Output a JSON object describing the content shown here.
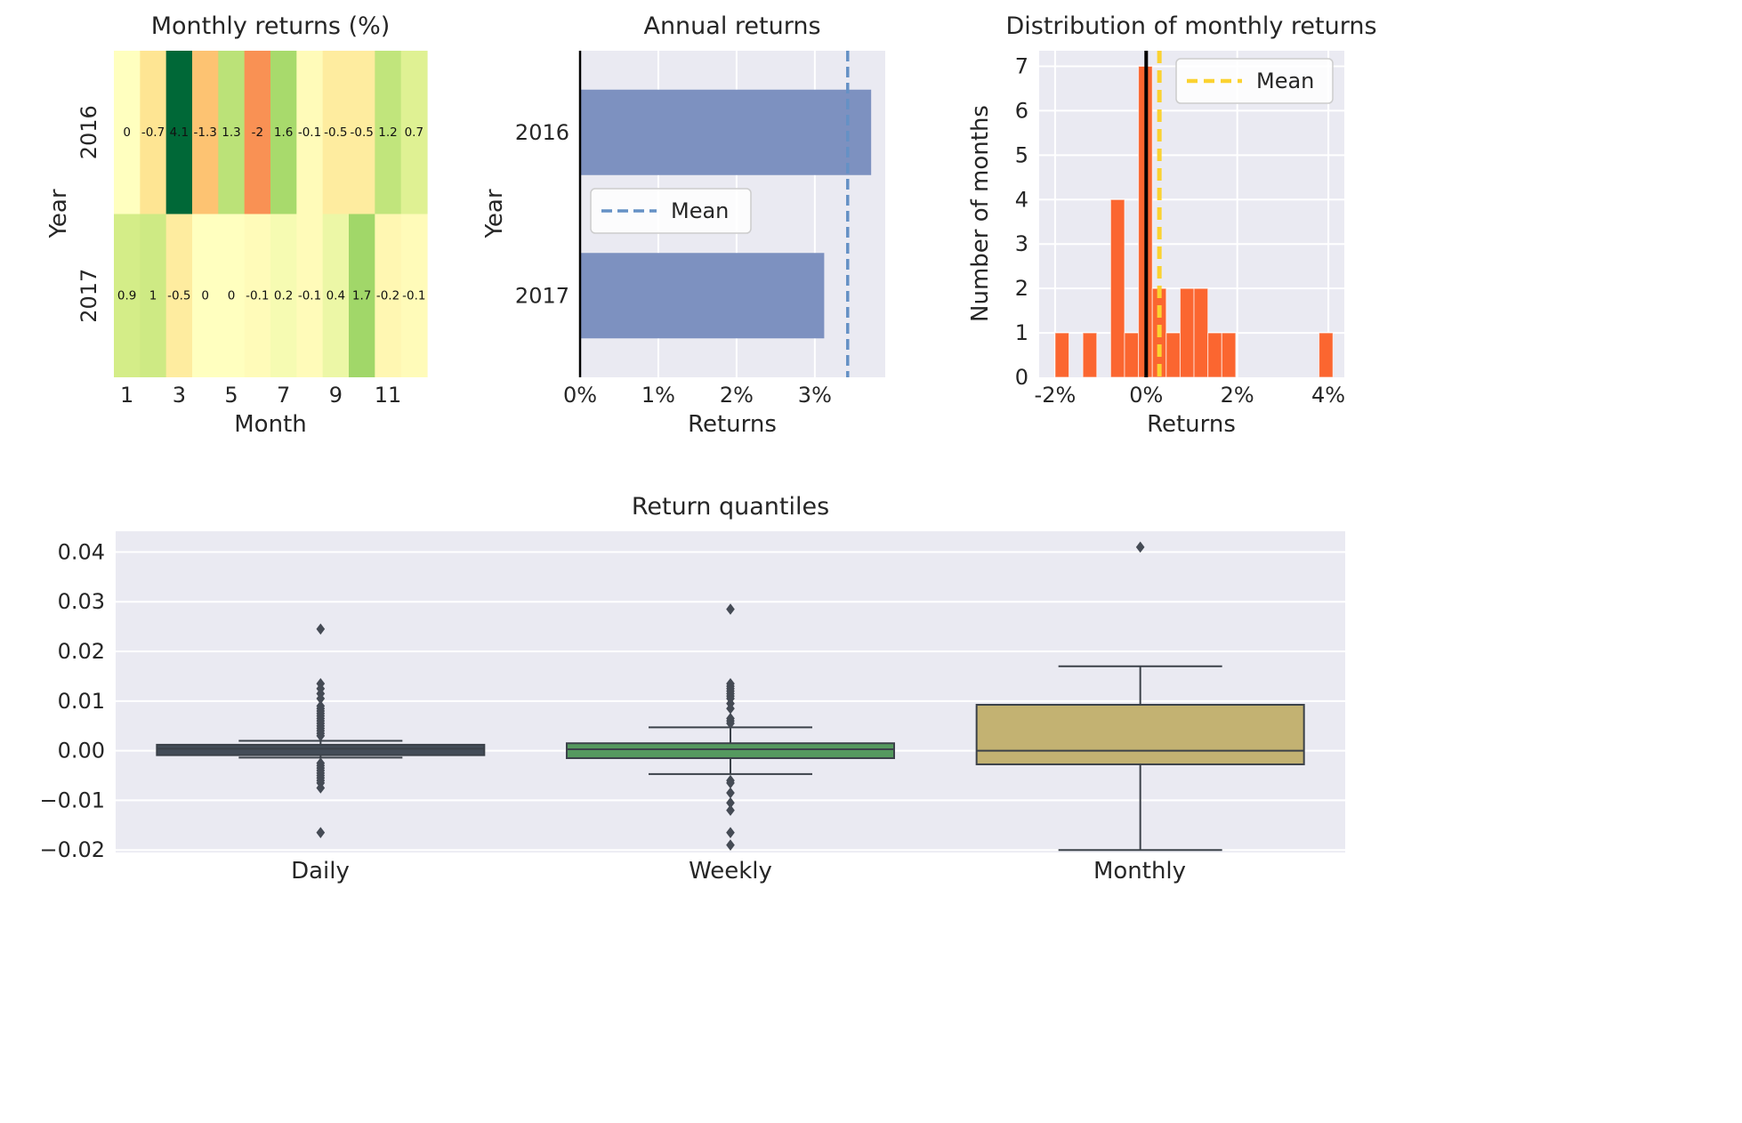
{
  "style": {
    "figure_bg": "#ffffff",
    "axes_bg": "#eaeaf2",
    "grid": "#ffffff",
    "text": "#262626",
    "annotation_text": "#111111",
    "box_edge": "#3b4149",
    "flier": "#454b55",
    "legend_bg": "rgba(255,255,255,0.85)",
    "legend_border": "#cccccc",
    "rdylgn": [
      "#a50026",
      "#d73027",
      "#f46d43",
      "#fdae61",
      "#fee08b",
      "#ffffbf",
      "#d9ef8b",
      "#a6d96a",
      "#66bd63",
      "#1a9850",
      "#006837"
    ]
  },
  "chart_data": [
    {
      "id": "monthly_returns_heatmap",
      "type": "heatmap",
      "title": "Monthly returns (%)",
      "xlabel": "Month",
      "ylabel": "Year",
      "rows": [
        "2016",
        "2017"
      ],
      "values": [
        [
          0,
          -0.7,
          4.1,
          -1.3,
          1.3,
          -2,
          1.6,
          -0.1,
          -0.5,
          -0.5,
          1.2,
          0.7
        ],
        [
          0.9,
          1,
          -0.5,
          0,
          0,
          -0.1,
          0.2,
          -0.1,
          0.4,
          1.7,
          -0.2,
          -0.1
        ]
      ],
      "labels": [
        [
          "0",
          "-0.7",
          "4.1",
          "-1.3",
          "1.3",
          "-2",
          "1.6",
          "-0.1",
          "-0.5",
          "-0.5",
          "1.2",
          "0.7"
        ],
        [
          "0.9",
          "1",
          "-0.5",
          "0",
          "0",
          "-0.1",
          "0.2",
          "-0.1",
          "0.4",
          "1.7",
          "-0.2",
          "-0.1"
        ]
      ],
      "colormap": "RdYlGn",
      "center": 0,
      "vmin": -2,
      "vmax": 4.1,
      "xticks": {
        "positions": [
          1,
          3,
          5,
          7,
          9,
          11
        ],
        "labels": [
          "1",
          "3",
          "5",
          "7",
          "9",
          "11"
        ]
      }
    },
    {
      "id": "annual_returns",
      "type": "bar",
      "title": "Annual returns",
      "xlabel": "Returns",
      "ylabel": "Year",
      "categories": [
        "2016",
        "2017"
      ],
      "values": [
        3.72,
        3.12
      ],
      "mean": 3.42,
      "xlim": [
        0,
        3.9
      ],
      "xticks": [
        0,
        1,
        2,
        3
      ],
      "xtick_labels": [
        "0%",
        "1%",
        "2%",
        "3%"
      ],
      "legend": "Mean",
      "legend_position": "center left",
      "bar_color": "#7d91c0",
      "mean_color": "#6591c5"
    },
    {
      "id": "distribution_of_monthly_returns",
      "type": "histogram",
      "title": "Distribution of monthly returns",
      "xlabel": "Returns",
      "ylabel": "Number of months",
      "bin_start": -2.0,
      "bin_width": 0.305,
      "counts": [
        1,
        0,
        1,
        0,
        4,
        1,
        7,
        2,
        1,
        2,
        2,
        1,
        1,
        0,
        0,
        0,
        0,
        0,
        0,
        1
      ],
      "mean": 0.29,
      "xlim": [
        -2.35,
        4.35
      ],
      "ylim": [
        0,
        7.35
      ],
      "xticks": [
        -2,
        0,
        2,
        4
      ],
      "xtick_labels": [
        "-2%",
        "0%",
        "2%",
        "4%"
      ],
      "yticks": [
        0,
        1,
        2,
        3,
        4,
        5,
        6,
        7
      ],
      "legend": "Mean",
      "legend_position": "upper right",
      "bar_color": "#fb6630",
      "mean_color": "#fbd231",
      "zero_line_color": "#000000"
    },
    {
      "id": "return_quantiles",
      "type": "boxplot",
      "title": "Return quantiles",
      "categories": [
        "Daily",
        "Weekly",
        "Monthly"
      ],
      "ylim": [
        -0.0205,
        0.0442
      ],
      "yticks": [
        0.04,
        0.03,
        0.02,
        0.01,
        0.0,
        -0.01,
        -0.02
      ],
      "ytick_labels": [
        "0.04",
        "0.03",
        "0.02",
        "0.01",
        "0.00",
        "−0.01",
        "−0.02"
      ],
      "boxes": [
        {
          "label": "Daily",
          "q1": -0.0009,
          "median": 0.0004,
          "q3": 0.0012,
          "whisker_low": -0.0014,
          "whisker_high": 0.002,
          "outliers": [
            0.0245,
            0.0135,
            0.0125,
            0.0115,
            0.0105,
            0.009,
            0.0085,
            0.008,
            0.0075,
            0.007,
            0.0065,
            0.006,
            0.0055,
            0.005,
            0.0045,
            0.004,
            0.0035,
            0.003,
            -0.0025,
            -0.003,
            -0.0035,
            -0.004,
            -0.0045,
            -0.005,
            -0.0055,
            -0.006,
            -0.0065,
            -0.0075,
            -0.0165
          ],
          "color": "#434c58"
        },
        {
          "label": "Weekly",
          "q1": -0.0015,
          "median": 0.0003,
          "q3": 0.0015,
          "whisker_low": -0.0047,
          "whisker_high": 0.0047,
          "outliers": [
            0.0285,
            0.0135,
            0.013,
            0.0125,
            0.012,
            0.0115,
            0.011,
            0.0105,
            0.0095,
            0.0085,
            0.0065,
            0.006,
            0.0055,
            -0.006,
            -0.0065,
            -0.0085,
            -0.0105,
            -0.012,
            -0.0165,
            -0.019
          ],
          "color": "#55995f"
        },
        {
          "label": "Monthly",
          "q1": -0.00275,
          "median": 0.0,
          "q3": 0.00925,
          "whisker_low": -0.02,
          "whisker_high": 0.017,
          "outliers": [
            0.041
          ],
          "color": "#c3b272"
        }
      ]
    }
  ]
}
